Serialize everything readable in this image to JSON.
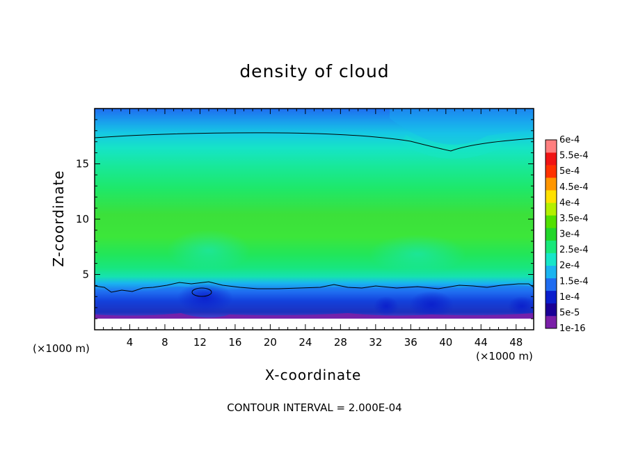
{
  "chart_data": {
    "type": "heatmap",
    "title": "density of cloud",
    "xlabel": "X-coordinate",
    "ylabel": "Z-coordinate",
    "x_unit_left": "(×1000 m)",
    "x_unit_right": "(×1000 m)",
    "note": "CONTOUR INTERVAL = 2.000E-04",
    "xlim": [
      0,
      50
    ],
    "ylim": [
      0,
      20
    ],
    "x_ticks": [
      "4",
      "8",
      "12",
      "16",
      "20",
      "24",
      "28",
      "32",
      "36",
      "40",
      "44",
      "48"
    ],
    "y_ticks": [
      "5",
      "10",
      "15"
    ],
    "colorbar": {
      "levels": [
        "1e-16",
        "5e-5",
        "1e-4",
        "1.5e-4",
        "2e-4",
        "2.5e-4",
        "3e-4",
        "3.5e-4",
        "4e-4",
        "4.5e-4",
        "5e-4",
        "5.5e-4",
        "6e-4"
      ],
      "colors": [
        "#7a1fa8",
        "#1a0096",
        "#0a1ecc",
        "#1f6cf0",
        "#1ab4f0",
        "#16e6c8",
        "#18e87a",
        "#22d62a",
        "#52e000",
        "#b4f000",
        "#ffe100",
        "#ff9600",
        "#ff3200",
        "#f01414",
        "#ff7f7f"
      ]
    },
    "contour_value": "2.000E-04"
  }
}
